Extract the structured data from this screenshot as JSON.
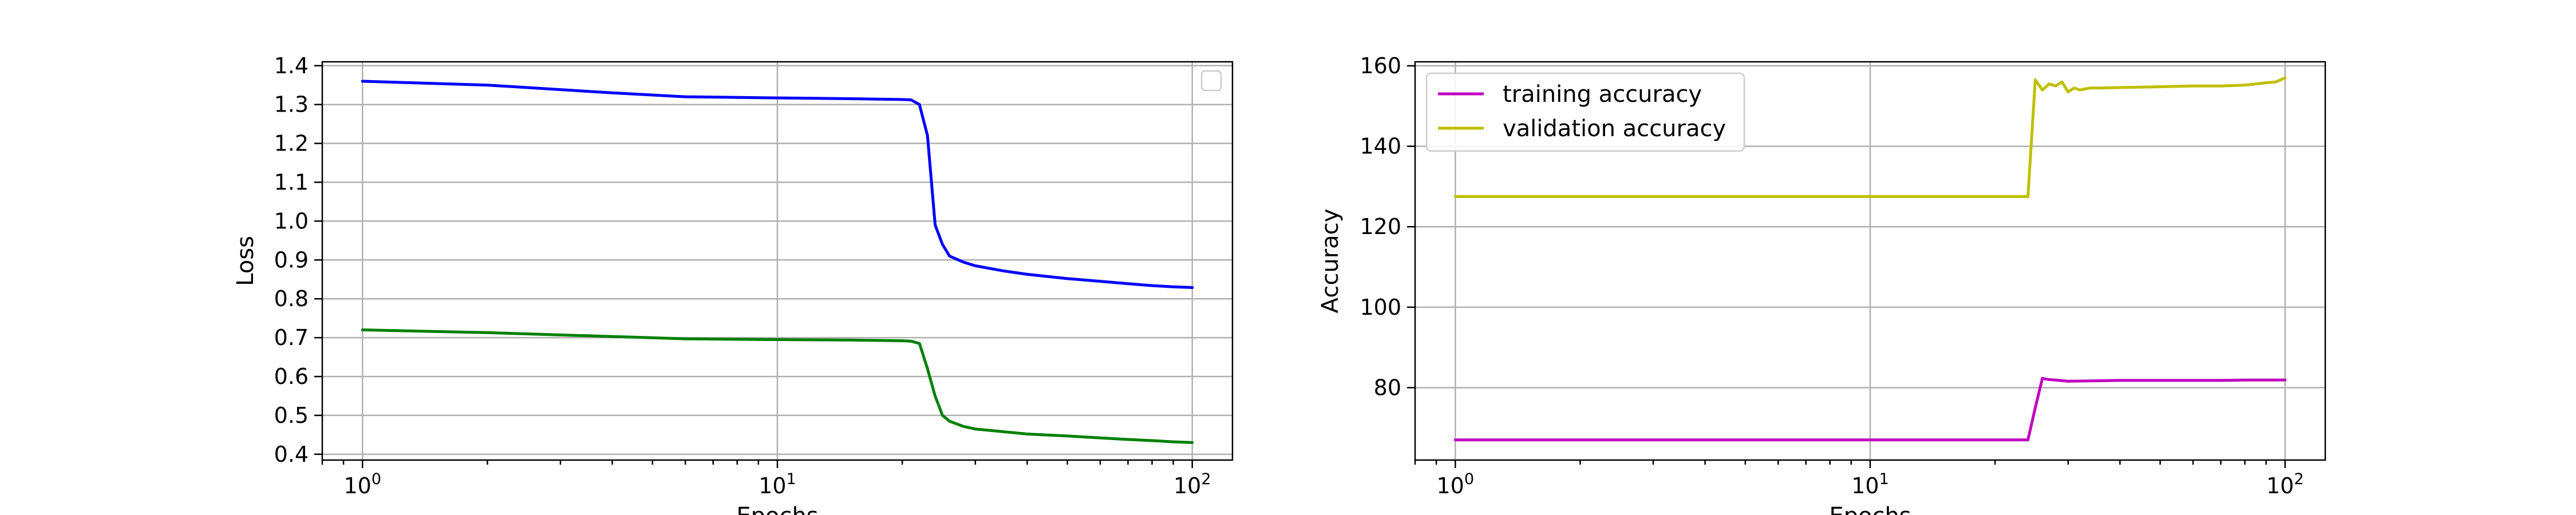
{
  "chart_data": [
    {
      "type": "line",
      "title": "",
      "xlabel": "Epochs",
      "ylabel": "Loss",
      "xscale": "log",
      "xlim": [
        0.8,
        125
      ],
      "ylim": [
        0.385,
        1.41
      ],
      "grid": true,
      "legend": {
        "placement": "top-right",
        "entries": []
      },
      "yticks": [
        "0.4",
        "0.5",
        "0.6",
        "0.7",
        "0.8",
        "0.9",
        "1.0",
        "1.1",
        "1.2",
        "1.3",
        "1.4"
      ],
      "xticks": [
        {
          "value": 1,
          "base": "10",
          "exp": "0"
        },
        {
          "value": 10,
          "base": "10",
          "exp": "1"
        },
        {
          "value": 100,
          "base": "10",
          "exp": "2"
        }
      ],
      "series": [
        {
          "color": "#0000ff",
          "x": [
            1,
            2,
            4,
            6,
            10,
            15,
            20,
            21,
            22,
            23,
            24,
            25,
            26,
            28,
            30,
            35,
            40,
            50,
            60,
            70,
            80,
            90,
            100
          ],
          "y": [
            1.36,
            1.35,
            1.33,
            1.32,
            1.317,
            1.315,
            1.313,
            1.312,
            1.3,
            1.22,
            0.99,
            0.94,
            0.91,
            0.895,
            0.885,
            0.872,
            0.863,
            0.852,
            0.845,
            0.839,
            0.834,
            0.831,
            0.829
          ]
        },
        {
          "color": "#008000",
          "x": [
            1,
            2,
            4,
            6,
            10,
            15,
            20,
            21,
            22,
            23,
            24,
            25,
            26,
            28,
            30,
            35,
            40,
            50,
            60,
            70,
            80,
            90,
            100
          ],
          "y": [
            0.72,
            0.713,
            0.703,
            0.697,
            0.695,
            0.694,
            0.692,
            0.691,
            0.685,
            0.62,
            0.55,
            0.5,
            0.485,
            0.472,
            0.465,
            0.458,
            0.452,
            0.447,
            0.442,
            0.438,
            0.435,
            0.432,
            0.43
          ]
        }
      ]
    },
    {
      "type": "line",
      "title": "",
      "xlabel": "Epochs",
      "ylabel": "Accuracy",
      "xscale": "log",
      "xlim": [
        0.8,
        125
      ],
      "ylim": [
        62,
        161
      ],
      "grid": true,
      "legend": {
        "placement": "top-left"
      },
      "yticks": [
        "80",
        "100",
        "120",
        "140",
        "160"
      ],
      "xticks": [
        {
          "value": 1,
          "base": "10",
          "exp": "0"
        },
        {
          "value": 10,
          "base": "10",
          "exp": "1"
        },
        {
          "value": 100,
          "base": "10",
          "exp": "2"
        }
      ],
      "series": [
        {
          "name": "training accuracy",
          "color": "#bf00bf",
          "x": [
            1,
            10,
            20,
            24,
            25,
            26,
            27,
            28,
            30,
            35,
            40,
            50,
            60,
            70,
            80,
            90,
            100
          ],
          "y": [
            67,
            67,
            67,
            67,
            75,
            82.3,
            82,
            81.9,
            81.6,
            81.7,
            81.8,
            81.8,
            81.8,
            81.8,
            81.9,
            81.9,
            81.9
          ]
        },
        {
          "name": "validation accuracy",
          "color": "#bfbf00",
          "x": [
            1,
            10,
            20,
            24,
            25,
            26,
            27,
            28,
            29,
            30,
            31,
            32,
            34,
            36,
            40,
            50,
            60,
            70,
            80,
            85,
            90,
            95,
            100
          ],
          "y": [
            127.5,
            127.5,
            127.5,
            127.5,
            156.5,
            154,
            155.5,
            155,
            156,
            153.5,
            154.5,
            154,
            154.5,
            154.5,
            154.6,
            154.8,
            155,
            155,
            155.2,
            155.5,
            155.8,
            156,
            157
          ]
        }
      ]
    }
  ]
}
